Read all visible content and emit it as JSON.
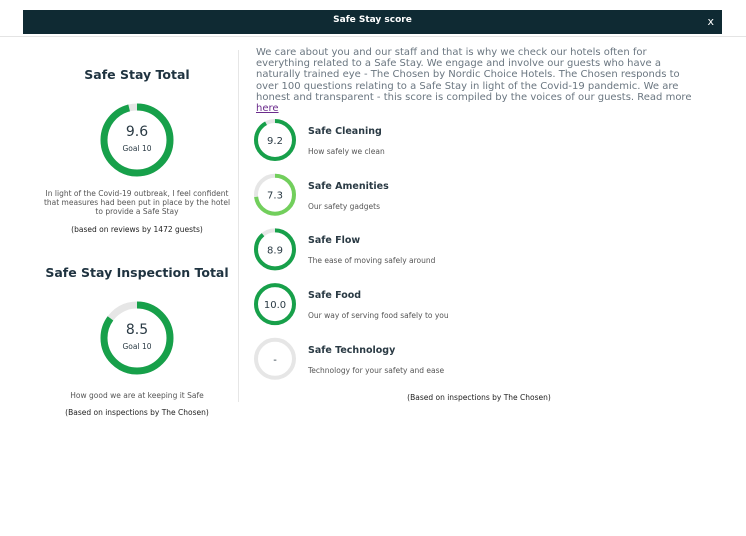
{
  "header": {
    "title": "Safe Stay score",
    "close": "x"
  },
  "totals": [
    {
      "title": "Safe Stay Total",
      "score": 9.6,
      "goal_label": "Goal",
      "goal": 10,
      "color": "#17a04a",
      "description": "In light of the Covid-19 outbreak, I feel confident that measures had been put in place by the hotel to provide a Safe Stay",
      "note": "(based on reviews by 1472 guests)"
    },
    {
      "title": "Safe Stay Inspection Total",
      "score": 8.5,
      "goal_label": "Goal",
      "goal": 10,
      "color": "#17a04a",
      "description": "How good we are at keeping it Safe",
      "note": "(Based on inspections by The Chosen)"
    }
  ],
  "intro": {
    "text": "We care about you and our staff and that is why we check our hotels often for everything related to a Safe Stay. We engage and involve our guests who have a naturally trained eye - The Chosen by Nordic Choice Hotels. The Chosen responds to over 100 questions relating to a Safe Stay in light of the Covid-19 pandemic. We are honest and transparent - this score is compiled by the voices of our guests. Read more",
    "link": "here"
  },
  "categories": [
    {
      "score": 9.2,
      "name": "Safe Cleaning",
      "description": "How safely we clean",
      "color": "#17a04a"
    },
    {
      "score": 7.3,
      "name": "Safe Amenities",
      "description": "Our safety gadgets",
      "color": "#72cf5c"
    },
    {
      "score": 8.9,
      "name": "Safe Flow",
      "description": "The ease of moving safely around",
      "color": "#17a04a"
    },
    {
      "score": {
        "value": 10,
        "label": "10.0"
      },
      "name": "Safe Food",
      "description": "Our way of serving food safely to you",
      "color": "#17a04a"
    },
    {
      "score": "-",
      "name": "Safe Technology",
      "description": "Technology for your safety and ease",
      "color": "#17a04a"
    }
  ],
  "footnote": "(Based on inspections by The Chosen)"
}
